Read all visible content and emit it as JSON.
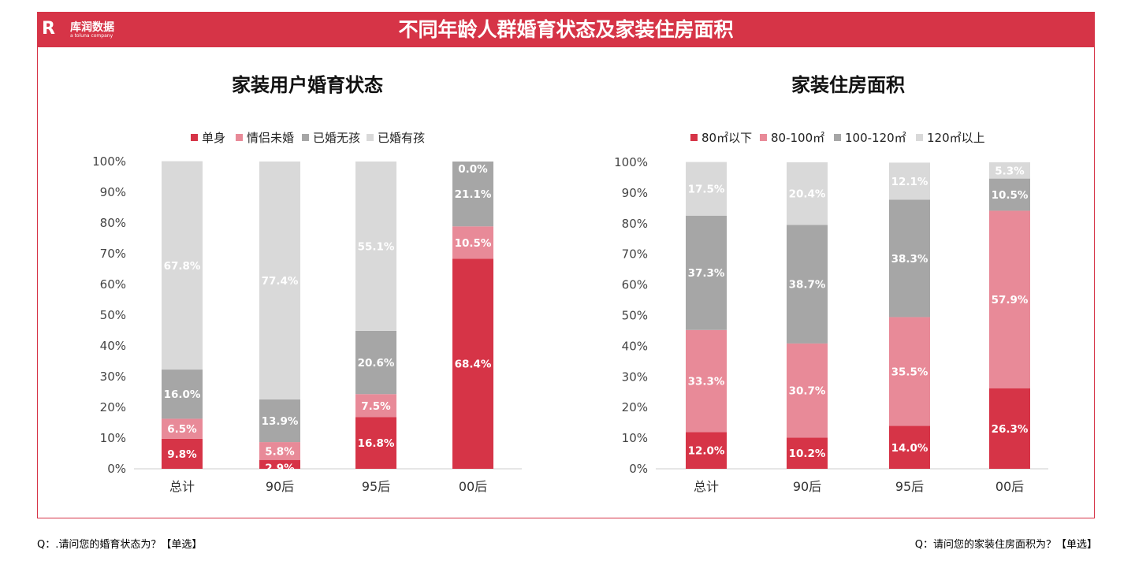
{
  "header": {
    "title": "不同年龄人群婚育状态及家装住房面积",
    "logo_cn": "库润数据",
    "logo_en": "a toluna company",
    "logo_mark": "R"
  },
  "colors": [
    "#d63447",
    "#e88a98",
    "#a6a6a6",
    "#d9d9d9"
  ],
  "chart_data": [
    {
      "type": "bar",
      "stacked": true,
      "title": "家装用户婚育状态",
      "categories": [
        "总计",
        "90后",
        "95后",
        "00后"
      ],
      "ylim": [
        0,
        100
      ],
      "yticks": [
        "0%",
        "10%",
        "20%",
        "30%",
        "40%",
        "50%",
        "60%",
        "70%",
        "80%",
        "90%",
        "100%"
      ],
      "legend": "top",
      "series": [
        {
          "name": "单身",
          "values": [
            9.8,
            2.9,
            16.8,
            68.4
          ]
        },
        {
          "name": "情侣未婚",
          "values": [
            6.5,
            5.8,
            7.5,
            10.5
          ]
        },
        {
          "name": "已婚无孩",
          "values": [
            16.0,
            13.9,
            20.6,
            21.1
          ]
        },
        {
          "name": "已婚有孩",
          "values": [
            67.8,
            77.4,
            55.1,
            0.0
          ]
        }
      ]
    },
    {
      "type": "bar",
      "stacked": true,
      "title": "家装住房面积",
      "categories": [
        "总计",
        "90后",
        "95后",
        "00后"
      ],
      "ylim": [
        0,
        100
      ],
      "yticks": [
        "0%",
        "10%",
        "20%",
        "30%",
        "40%",
        "50%",
        "60%",
        "70%",
        "80%",
        "90%",
        "100%"
      ],
      "legend": "top",
      "series": [
        {
          "name": "80㎡以下",
          "values": [
            12.0,
            10.2,
            14.0,
            26.3
          ]
        },
        {
          "name": "80-100㎡",
          "values": [
            33.3,
            30.7,
            35.5,
            57.9
          ]
        },
        {
          "name": "100-120㎡",
          "values": [
            37.3,
            38.7,
            38.3,
            10.5
          ]
        },
        {
          "name": "120㎡以上",
          "values": [
            17.5,
            20.4,
            12.1,
            5.3
          ]
        }
      ]
    }
  ],
  "footnotes": {
    "left": "Q：.请问您的婚育状态为？【单选】",
    "right": "Q：请问您的家装住房面积为？【单选】"
  }
}
